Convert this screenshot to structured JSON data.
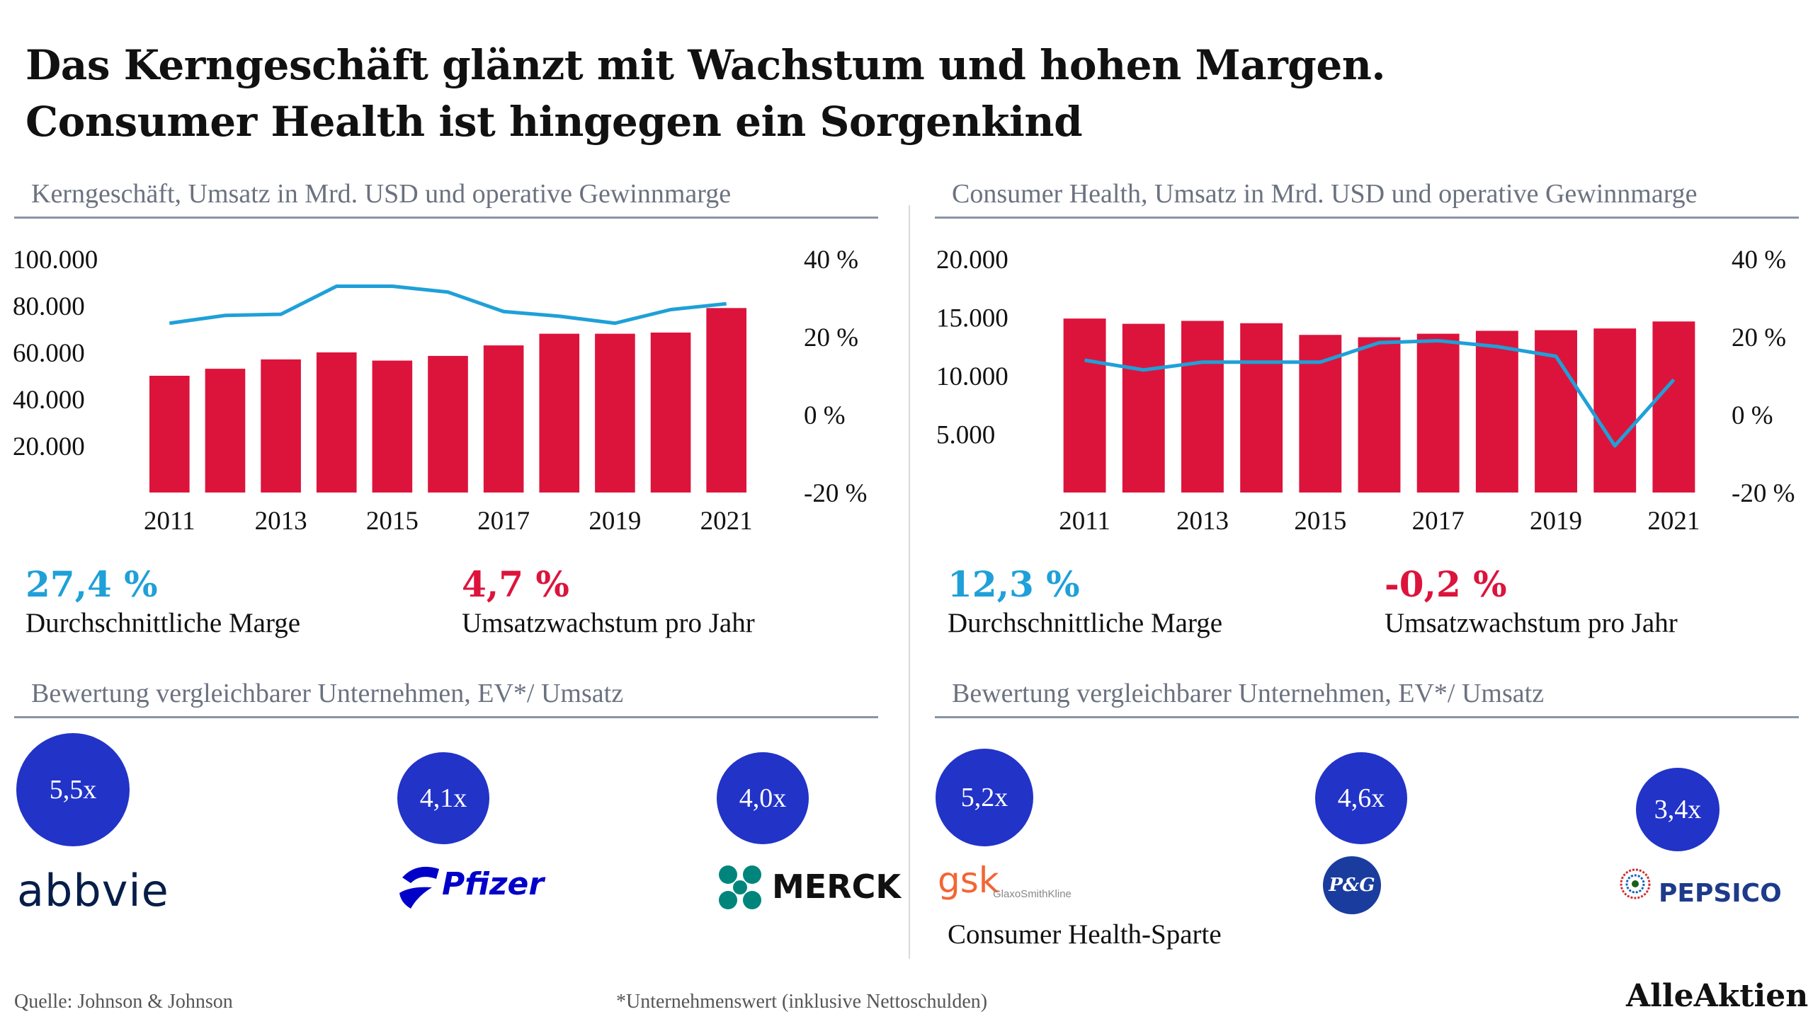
{
  "title": {
    "line1": "Das Kerngeschäft glänzt mit Wachstum und hohen Margen.",
    "line2": "Consumer Health ist hingegen ein Sorgenkind"
  },
  "colors": {
    "bar": "#dc143c",
    "line": "#1fa0d8",
    "bubble": "#2233c8",
    "margin_stat": "#1fa0d8",
    "growth_stat": "#dc143c"
  },
  "chart_data": [
    {
      "type": "bar",
      "title": "Kerngeschäft, Umsatz in Mrd. USD und operative Gewinnmarge",
      "categories": [
        "2011",
        "2012",
        "2013",
        "2014",
        "2015",
        "2016",
        "2017",
        "2018",
        "2019",
        "2020",
        "2021"
      ],
      "x_tick_labels": [
        "2011",
        "2013",
        "2015",
        "2017",
        "2019",
        "2021"
      ],
      "ylim": [
        0,
        100000
      ],
      "y_ticks": [
        "100.000",
        "80.000",
        "60.000",
        "40.000",
        "20.000"
      ],
      "y_tick_values": [
        100000,
        80000,
        60000,
        40000,
        20000
      ],
      "y2lim": [
        -20,
        40
      ],
      "y2_ticks": [
        "40 %",
        "20 %",
        "0 %",
        "-20 %"
      ],
      "y2_tick_values": [
        40,
        20,
        0,
        -20
      ],
      "series": [
        {
          "type": "bar",
          "values": [
            50000,
            53000,
            57000,
            60000,
            56500,
            58500,
            63000,
            68000,
            68000,
            68500,
            79000
          ]
        },
        {
          "type": "line",
          "axis": "right",
          "values": [
            23.5,
            25.5,
            25.8,
            33,
            33,
            31.5,
            26.5,
            25.3,
            23.5,
            27,
            28.5
          ]
        }
      ]
    },
    {
      "type": "bar",
      "title": "Consumer Health, Umsatz in Mrd. USD und operative Gewinnmarge",
      "categories": [
        "2011",
        "2012",
        "2013",
        "2014",
        "2015",
        "2016",
        "2017",
        "2018",
        "2019",
        "2020",
        "2021"
      ],
      "x_tick_labels": [
        "2011",
        "2013",
        "2015",
        "2017",
        "2019",
        "2021"
      ],
      "ylim": [
        0,
        20000
      ],
      "y_ticks": [
        "20.000",
        "15.000",
        "10.000",
        "5.000"
      ],
      "y_tick_values": [
        20000,
        15000,
        10000,
        5000
      ],
      "y2lim": [
        -20,
        40
      ],
      "y2_ticks": [
        "40 %",
        "20 %",
        "0 %",
        "-20 %"
      ],
      "y2_tick_values": [
        40,
        20,
        0,
        -20
      ],
      "series": [
        {
          "type": "bar",
          "values": [
            14900,
            14450,
            14700,
            14500,
            13500,
            13300,
            13600,
            13850,
            13900,
            14050,
            14650
          ]
        },
        {
          "type": "line",
          "axis": "right",
          "values": [
            14,
            11.5,
            13.5,
            13.5,
            13.5,
            18.5,
            19,
            17.5,
            15,
            -8,
            9
          ]
        }
      ]
    }
  ],
  "left_stats": {
    "margin_value": "27,4 %",
    "margin_label": "Durchschnittliche Marge",
    "growth_value": "4,7 %",
    "growth_label": "Umsatzwachstum pro Jahr"
  },
  "right_stats": {
    "margin_value": "12,3 %",
    "margin_label": "Durchschnittliche Marge",
    "growth_value": "-0,2 %",
    "growth_label": "Umsatzwachstum pro Jahr"
  },
  "valuation_left": {
    "title": "Bewertung vergleichbarer Unternehmen, EV*/ Umsatz",
    "companies": [
      {
        "name": "abbvie",
        "multiple": "5,5x"
      },
      {
        "name": "Pfizer",
        "multiple": "4,1x"
      },
      {
        "name": "MERCK",
        "multiple": "4,0x"
      }
    ]
  },
  "valuation_right": {
    "title": "Bewertung vergleichbarer Unternehmen, EV*/ Umsatz",
    "companies": [
      {
        "name": "gsk",
        "multiple": "5,2x",
        "logo_sub": "GlaxoSmithKline",
        "caption": "Consumer Health-Sparte"
      },
      {
        "name": "P&G",
        "multiple": "4,6x"
      },
      {
        "name": "PEPSICO",
        "multiple": "3,4x"
      }
    ]
  },
  "footer": {
    "source": "Quelle: Johnson & Johnson",
    "note": "*Unternehmenswert (inklusive Nettoschulden)",
    "brand": "AlleAktien"
  }
}
